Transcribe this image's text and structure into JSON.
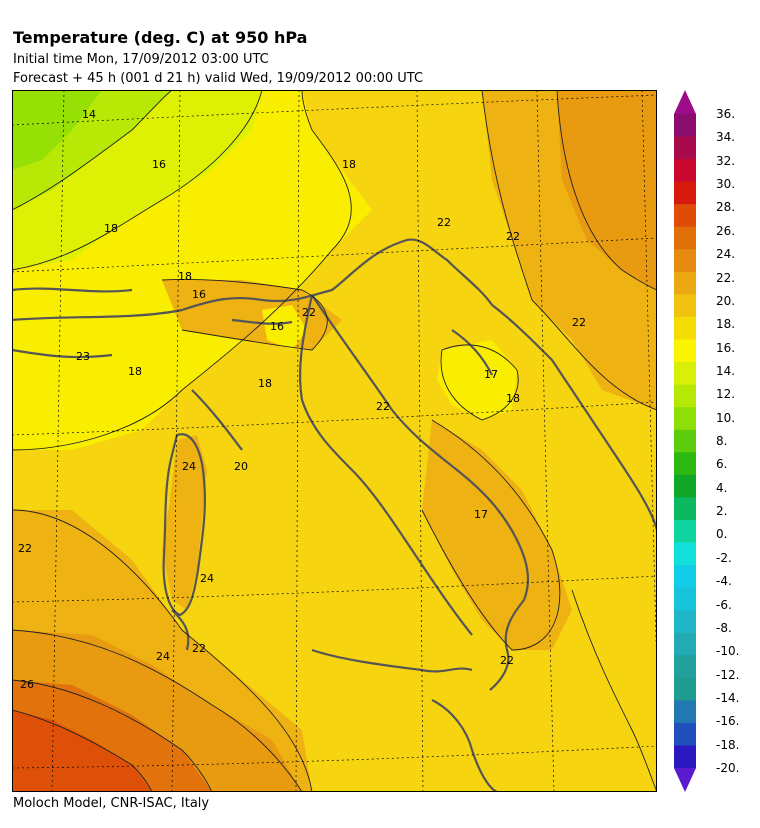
{
  "header": {
    "title": "Temperature (deg. C) at 950 hPa",
    "initial_time": "Initial time  Mon, 17/09/2012  03:00 UTC",
    "forecast": "Forecast  +  45 h  (001 d 21 h)  valid Wed, 19/09/2012 00:00 UTC"
  },
  "footer": {
    "credit": "Moloch Model, CNR-ISAC, Italy"
  },
  "map": {
    "region": "Italy and central Mediterranean",
    "contour_labels": [
      "14",
      "16",
      "18",
      "18",
      "16",
      "18",
      "18",
      "22",
      "22",
      "16",
      "23",
      "18",
      "17",
      "18",
      "22",
      "24",
      "20",
      "17",
      "22",
      "24",
      "22",
      "24",
      "26",
      "22",
      "22",
      "22"
    ]
  },
  "colorbar": {
    "labels": [
      "36.",
      "34.",
      "32.",
      "30.",
      "28.",
      "26.",
      "24.",
      "22.",
      "20.",
      "18.",
      "16.",
      "14.",
      "12.",
      "10.",
      "8.",
      "6.",
      "4.",
      "2.",
      "0.",
      "-2.",
      "-4.",
      "-6.",
      "-8.",
      "-10.",
      "-12.",
      "-14.",
      "-16.",
      "-18.",
      "-20."
    ],
    "colors": [
      "#8B0D6E",
      "#A80A4C",
      "#C8082C",
      "#D81A0E",
      "#DE4C06",
      "#E2700A",
      "#E68A10",
      "#ECA812",
      "#F2C210",
      "#F6DC06",
      "#FAF400",
      "#D8F008",
      "#B6E806",
      "#8EDE08",
      "#5CCC0C",
      "#2EB812",
      "#10A826",
      "#0CB860",
      "#10D4A0",
      "#10E0D8",
      "#12CCE8",
      "#18C4DC",
      "#20B8C8",
      "#24AAB4",
      "#22A09C",
      "#1E9C90",
      "#2278B0",
      "#2050BC",
      "#2A18C0"
    ],
    "top_color": "#9C0C88",
    "bottom_color": "#5A1AD0"
  }
}
